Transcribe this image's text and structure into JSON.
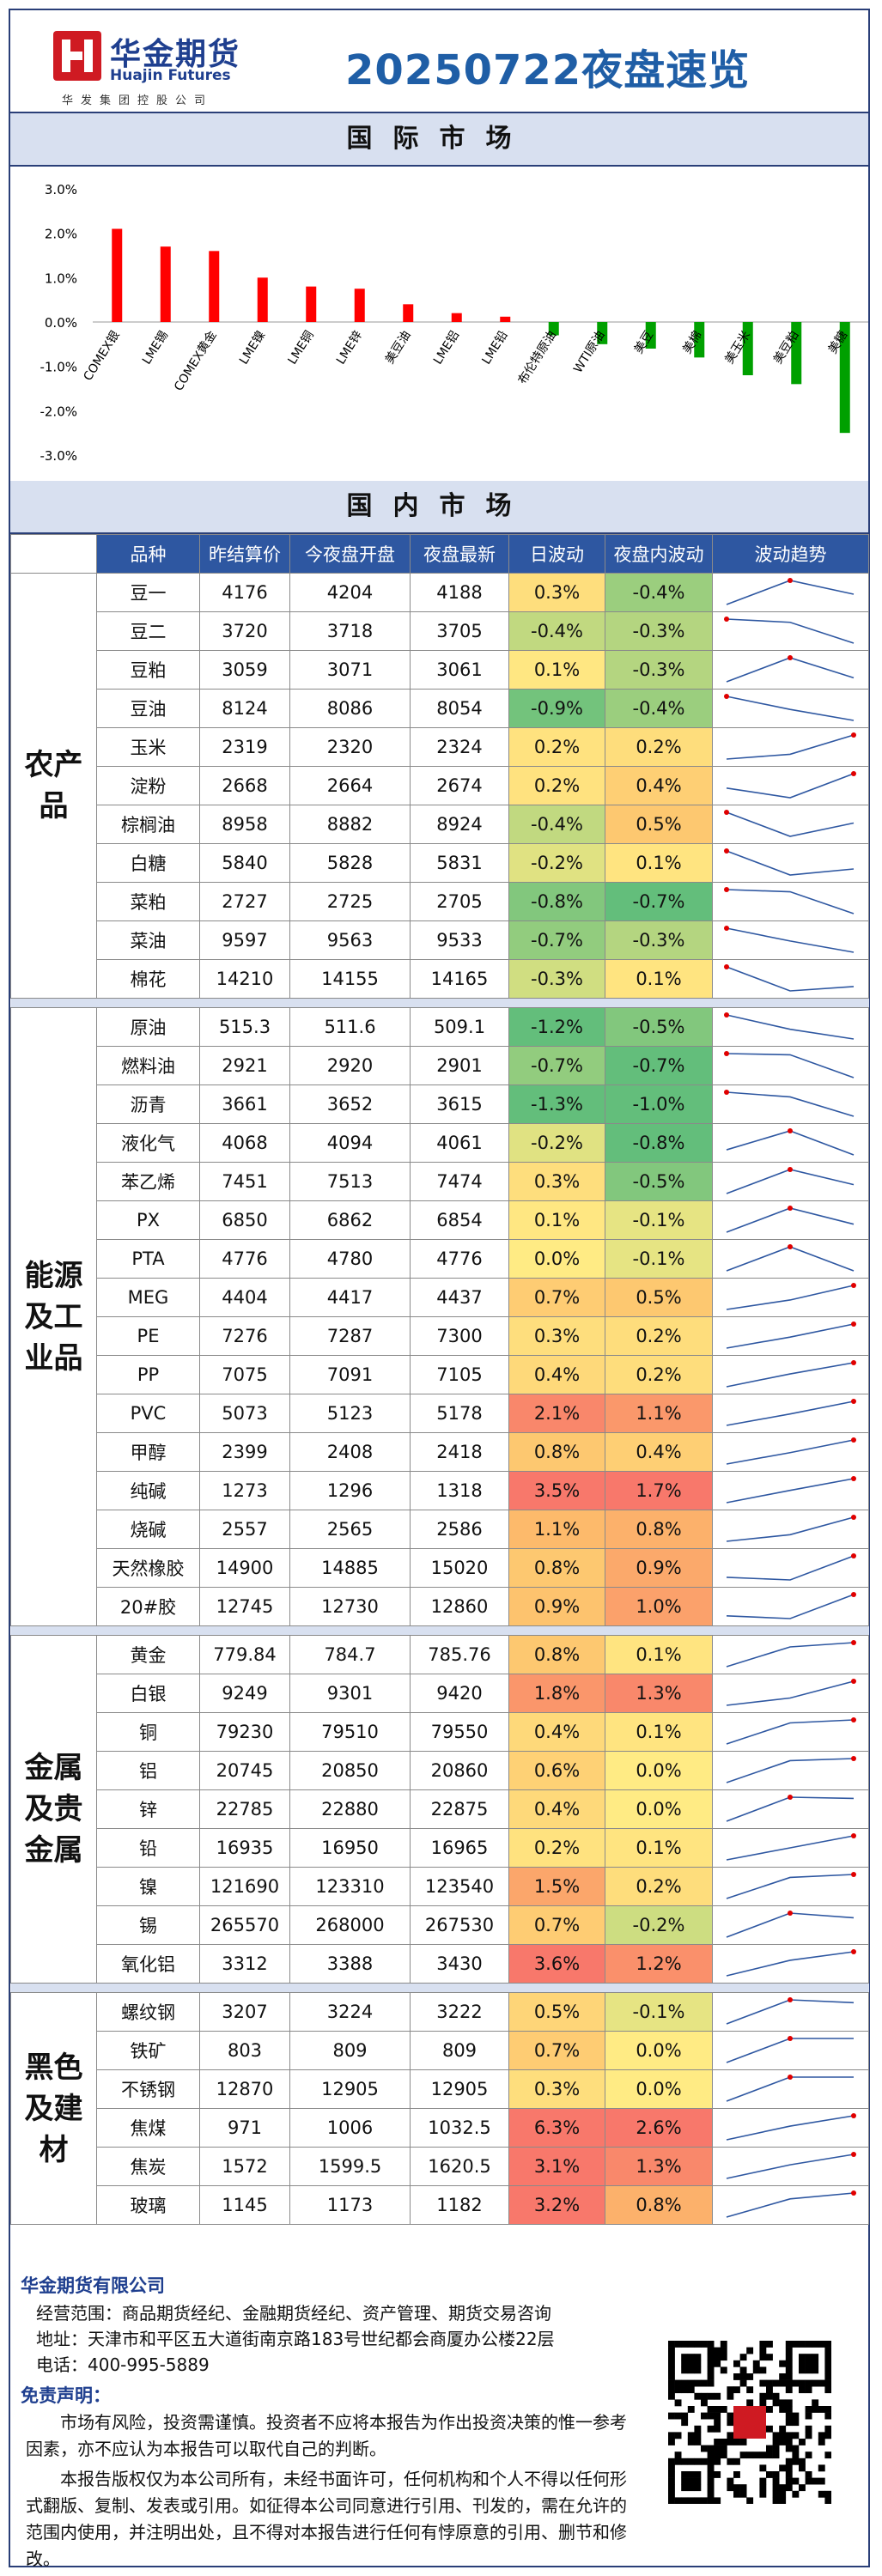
{
  "header": {
    "logo_cn": "华金期货",
    "logo_en": "Huajin Futures",
    "logo_sub": "华发集团控股公司",
    "title": "20250722夜盘速览"
  },
  "sections": {
    "intl": "国际市场",
    "domestic": "国内市场"
  },
  "chart_data": {
    "type": "bar",
    "categories": [
      "COMEX银",
      "LME锡",
      "COMEX黄金",
      "LME镍",
      "LME铜",
      "LME锌",
      "美豆油",
      "LME铝",
      "LME铅",
      "布伦特原油",
      "WTI原油",
      "美豆",
      "美棉",
      "美玉米",
      "美豆粕",
      "美糖"
    ],
    "values": [
      2.1,
      1.7,
      1.6,
      1.0,
      0.8,
      0.75,
      0.4,
      0.2,
      0.12,
      -0.3,
      -0.5,
      -0.6,
      -0.8,
      -1.2,
      -1.4,
      -2.5
    ],
    "ylim": [
      -3.0,
      3.0
    ],
    "yticks": [
      "3.0%",
      "2.0%",
      "1.0%",
      "0.0%",
      "-1.0%",
      "-2.0%",
      "-3.0%"
    ],
    "colors": {
      "positive": "#ff0000",
      "negative": "#00a000"
    },
    "grid": false
  },
  "table": {
    "headers": [
      "品种",
      "昨结算价",
      "今夜盘开盘",
      "夜盘最新",
      "日波动",
      "夜盘内波动",
      "波动趋势"
    ],
    "groups": [
      {
        "name": "农产品",
        "rows": [
          {
            "name": "豆一",
            "prev": "4176",
            "open": "4204",
            "last": "4188",
            "day": "0.3%",
            "night": "-0.4%",
            "dv": 0.3,
            "nv": -0.4
          },
          {
            "name": "豆二",
            "prev": "3720",
            "open": "3718",
            "last": "3705",
            "day": "-0.4%",
            "night": "-0.3%",
            "dv": -0.4,
            "nv": -0.3
          },
          {
            "name": "豆粕",
            "prev": "3059",
            "open": "3071",
            "last": "3061",
            "day": "0.1%",
            "night": "-0.3%",
            "dv": 0.1,
            "nv": -0.3
          },
          {
            "name": "豆油",
            "prev": "8124",
            "open": "8086",
            "last": "8054",
            "day": "-0.9%",
            "night": "-0.4%",
            "dv": -0.9,
            "nv": -0.4
          },
          {
            "name": "玉米",
            "prev": "2319",
            "open": "2320",
            "last": "2324",
            "day": "0.2%",
            "night": "0.2%",
            "dv": 0.2,
            "nv": 0.2
          },
          {
            "name": "淀粉",
            "prev": "2668",
            "open": "2664",
            "last": "2674",
            "day": "0.2%",
            "night": "0.4%",
            "dv": 0.2,
            "nv": 0.4
          },
          {
            "name": "棕榈油",
            "prev": "8958",
            "open": "8882",
            "last": "8924",
            "day": "-0.4%",
            "night": "0.5%",
            "dv": -0.4,
            "nv": 0.5
          },
          {
            "name": "白糖",
            "prev": "5840",
            "open": "5828",
            "last": "5831",
            "day": "-0.2%",
            "night": "0.1%",
            "dv": -0.2,
            "nv": 0.1
          },
          {
            "name": "菜粕",
            "prev": "2727",
            "open": "2725",
            "last": "2705",
            "day": "-0.8%",
            "night": "-0.7%",
            "dv": -0.8,
            "nv": -0.7
          },
          {
            "name": "菜油",
            "prev": "9597",
            "open": "9563",
            "last": "9533",
            "day": "-0.7%",
            "night": "-0.3%",
            "dv": -0.7,
            "nv": -0.3
          },
          {
            "name": "棉花",
            "prev": "14210",
            "open": "14155",
            "last": "14165",
            "day": "-0.3%",
            "night": "0.1%",
            "dv": -0.3,
            "nv": 0.1
          }
        ]
      },
      {
        "name": "能源及工业品",
        "rows": [
          {
            "name": "原油",
            "prev": "515.3",
            "open": "511.6",
            "last": "509.1",
            "day": "-1.2%",
            "night": "-0.5%",
            "dv": -1.2,
            "nv": -0.5
          },
          {
            "name": "燃料油",
            "prev": "2921",
            "open": "2920",
            "last": "2901",
            "day": "-0.7%",
            "night": "-0.7%",
            "dv": -0.7,
            "nv": -0.7
          },
          {
            "name": "沥青",
            "prev": "3661",
            "open": "3652",
            "last": "3615",
            "day": "-1.3%",
            "night": "-1.0%",
            "dv": -1.3,
            "nv": -1.0
          },
          {
            "name": "液化气",
            "prev": "4068",
            "open": "4094",
            "last": "4061",
            "day": "-0.2%",
            "night": "-0.8%",
            "dv": -0.2,
            "nv": -0.8
          },
          {
            "name": "苯乙烯",
            "prev": "7451",
            "open": "7513",
            "last": "7474",
            "day": "0.3%",
            "night": "-0.5%",
            "dv": 0.3,
            "nv": -0.5
          },
          {
            "name": "PX",
            "prev": "6850",
            "open": "6862",
            "last": "6854",
            "day": "0.1%",
            "night": "-0.1%",
            "dv": 0.1,
            "nv": -0.1
          },
          {
            "name": "PTA",
            "prev": "4776",
            "open": "4780",
            "last": "4776",
            "day": "0.0%",
            "night": "-0.1%",
            "dv": 0.0,
            "nv": -0.1
          },
          {
            "name": "MEG",
            "prev": "4404",
            "open": "4417",
            "last": "4437",
            "day": "0.7%",
            "night": "0.5%",
            "dv": 0.7,
            "nv": 0.5
          },
          {
            "name": "PE",
            "prev": "7276",
            "open": "7287",
            "last": "7300",
            "day": "0.3%",
            "night": "0.2%",
            "dv": 0.3,
            "nv": 0.2
          },
          {
            "name": "PP",
            "prev": "7075",
            "open": "7091",
            "last": "7105",
            "day": "0.4%",
            "night": "0.2%",
            "dv": 0.4,
            "nv": 0.2
          },
          {
            "name": "PVC",
            "prev": "5073",
            "open": "5123",
            "last": "5178",
            "day": "2.1%",
            "night": "1.1%",
            "dv": 2.1,
            "nv": 1.1
          },
          {
            "name": "甲醇",
            "prev": "2399",
            "open": "2408",
            "last": "2418",
            "day": "0.8%",
            "night": "0.4%",
            "dv": 0.8,
            "nv": 0.4
          },
          {
            "name": "纯碱",
            "prev": "1273",
            "open": "1296",
            "last": "1318",
            "day": "3.5%",
            "night": "1.7%",
            "dv": 3.5,
            "nv": 1.7
          },
          {
            "name": "烧碱",
            "prev": "2557",
            "open": "2565",
            "last": "2586",
            "day": "1.1%",
            "night": "0.8%",
            "dv": 1.1,
            "nv": 0.8
          },
          {
            "name": "天然橡胶",
            "prev": "14900",
            "open": "14885",
            "last": "15020",
            "day": "0.8%",
            "night": "0.9%",
            "dv": 0.8,
            "nv": 0.9
          },
          {
            "name": "20#胶",
            "prev": "12745",
            "open": "12730",
            "last": "12860",
            "day": "0.9%",
            "night": "1.0%",
            "dv": 0.9,
            "nv": 1.0
          }
        ]
      },
      {
        "name": "金属及贵金属",
        "rows": [
          {
            "name": "黄金",
            "prev": "779.84",
            "open": "784.7",
            "last": "785.76",
            "day": "0.8%",
            "night": "0.1%",
            "dv": 0.8,
            "nv": 0.1
          },
          {
            "name": "白银",
            "prev": "9249",
            "open": "9301",
            "last": "9420",
            "day": "1.8%",
            "night": "1.3%",
            "dv": 1.8,
            "nv": 1.3
          },
          {
            "name": "铜",
            "prev": "79230",
            "open": "79510",
            "last": "79550",
            "day": "0.4%",
            "night": "0.1%",
            "dv": 0.4,
            "nv": 0.1
          },
          {
            "name": "铝",
            "prev": "20745",
            "open": "20850",
            "last": "20860",
            "day": "0.6%",
            "night": "0.0%",
            "dv": 0.6,
            "nv": 0.0
          },
          {
            "name": "锌",
            "prev": "22785",
            "open": "22880",
            "last": "22875",
            "day": "0.4%",
            "night": "0.0%",
            "dv": 0.4,
            "nv": 0.0
          },
          {
            "name": "铅",
            "prev": "16935",
            "open": "16950",
            "last": "16965",
            "day": "0.2%",
            "night": "0.1%",
            "dv": 0.2,
            "nv": 0.1
          },
          {
            "name": "镍",
            "prev": "121690",
            "open": "123310",
            "last": "123540",
            "day": "1.5%",
            "night": "0.2%",
            "dv": 1.5,
            "nv": 0.2
          },
          {
            "name": "锡",
            "prev": "265570",
            "open": "268000",
            "last": "267530",
            "day": "0.7%",
            "night": "-0.2%",
            "dv": 0.7,
            "nv": -0.2
          },
          {
            "name": "氧化铝",
            "prev": "3312",
            "open": "3388",
            "last": "3430",
            "day": "3.6%",
            "night": "1.2%",
            "dv": 3.6,
            "nv": 1.2
          }
        ]
      },
      {
        "name": "黑色及建材",
        "rows": [
          {
            "name": "螺纹钢",
            "prev": "3207",
            "open": "3224",
            "last": "3222",
            "day": "0.5%",
            "night": "-0.1%",
            "dv": 0.5,
            "nv": -0.1
          },
          {
            "name": "铁矿",
            "prev": "803",
            "open": "809",
            "last": "809",
            "day": "0.7%",
            "night": "0.0%",
            "dv": 0.7,
            "nv": 0.0
          },
          {
            "name": "不锈钢",
            "prev": "12870",
            "open": "12905",
            "last": "12905",
            "day": "0.3%",
            "night": "0.0%",
            "dv": 0.3,
            "nv": 0.0
          },
          {
            "name": "焦煤",
            "prev": "971",
            "open": "1006",
            "last": "1032.5",
            "day": "6.3%",
            "night": "2.6%",
            "dv": 6.3,
            "nv": 2.6
          },
          {
            "name": "焦炭",
            "prev": "1572",
            "open": "1599.5",
            "last": "1620.5",
            "day": "3.1%",
            "night": "1.3%",
            "dv": 3.1,
            "nv": 1.3
          },
          {
            "name": "玻璃",
            "prev": "1145",
            "open": "1173",
            "last": "1182",
            "day": "3.2%",
            "night": "0.8%",
            "dv": 3.2,
            "nv": 0.8
          }
        ]
      }
    ]
  },
  "footer": {
    "company": "华金期货有限公司",
    "scope": "经营范围：商品期货经纪、金融期货经纪、资产管理、期货交易咨询",
    "address": "地址：天津市和平区五大道街南京路183号世纪都会商厦办公楼22层",
    "phone": "电话：400-995-5889",
    "disclaimer_title": "免责声明：",
    "para1": "市场有风险，投资需谨慎。投资者不应将本报告为作出投资决策的惟一参考因素，亦不应认为本报告可以取代自己的判断。",
    "para2": "本报告版权仅为本公司所有，未经书面许可，任何机构和个人不得以任何形式翻版、复制、发表或引用。如征得本公司同意进行引用、刊发的，需在允许的范围内使用，并注明出处，且不得对本报告进行任何有悖原意的引用、删节和修改。"
  }
}
